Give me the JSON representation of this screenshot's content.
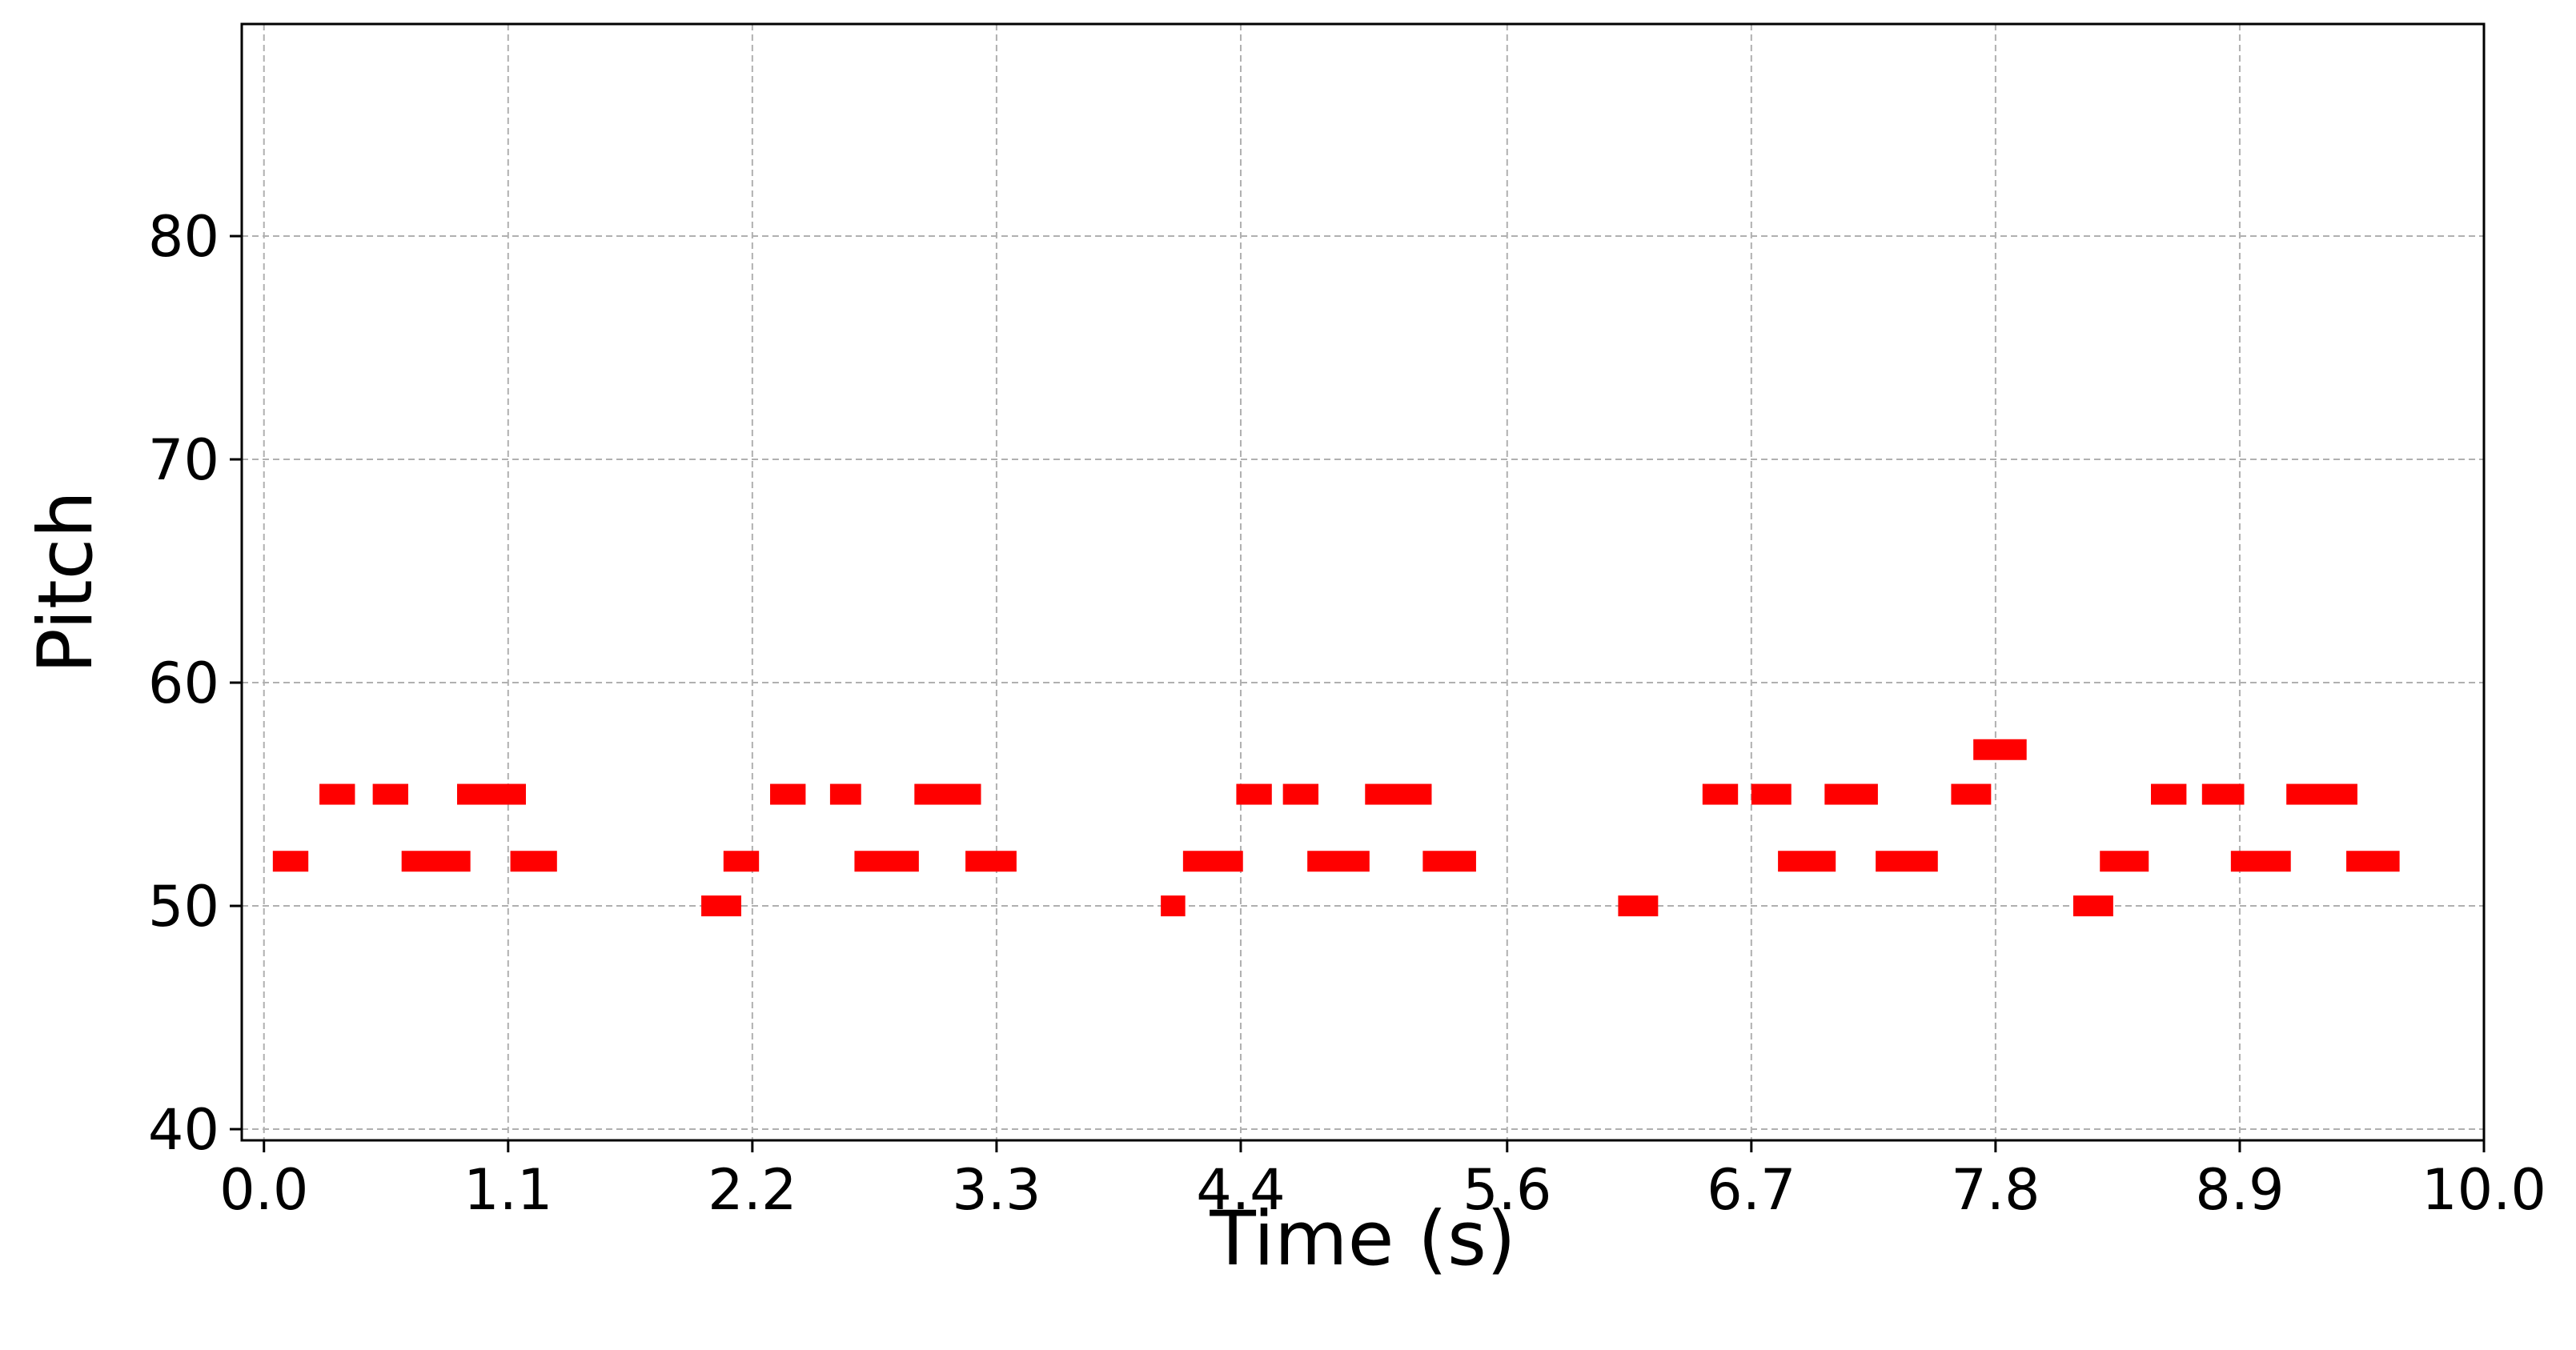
{
  "chart_data": {
    "type": "scatter",
    "title": "",
    "xlabel": "Time (s)",
    "ylabel": "Pitch",
    "xlim": [
      -0.1,
      10.0
    ],
    "ylim": [
      39.5,
      89.5
    ],
    "x_ticks": [
      "0.0",
      "1.1",
      "2.2",
      "3.3",
      "4.4",
      "5.6",
      "6.7",
      "7.8",
      "8.9",
      "10.0"
    ],
    "x_tick_values": [
      0.0,
      1.1,
      2.2,
      3.3,
      4.4,
      5.6,
      6.7,
      7.8,
      8.9,
      10.0
    ],
    "y_ticks": [
      "40",
      "50",
      "60",
      "70",
      "80"
    ],
    "y_tick_values": [
      40,
      50,
      60,
      70,
      80
    ],
    "grid": true,
    "note_color": "#ff0000",
    "series": [
      {
        "values": [
          {
            "start": 0.04,
            "end": 0.2,
            "pitch": 52
          },
          {
            "start": 0.25,
            "end": 0.41,
            "pitch": 55
          },
          {
            "start": 0.49,
            "end": 0.65,
            "pitch": 55
          },
          {
            "start": 0.62,
            "end": 0.93,
            "pitch": 52
          },
          {
            "start": 0.87,
            "end": 1.18,
            "pitch": 55
          },
          {
            "start": 1.11,
            "end": 1.32,
            "pitch": 52
          },
          {
            "start": 1.97,
            "end": 2.15,
            "pitch": 50
          },
          {
            "start": 2.07,
            "end": 2.23,
            "pitch": 52
          },
          {
            "start": 2.28,
            "end": 2.44,
            "pitch": 55
          },
          {
            "start": 2.55,
            "end": 2.69,
            "pitch": 55
          },
          {
            "start": 2.66,
            "end": 2.95,
            "pitch": 52
          },
          {
            "start": 2.93,
            "end": 3.23,
            "pitch": 55
          },
          {
            "start": 3.16,
            "end": 3.39,
            "pitch": 52
          },
          {
            "start": 4.04,
            "end": 4.15,
            "pitch": 50
          },
          {
            "start": 4.14,
            "end": 4.41,
            "pitch": 52
          },
          {
            "start": 4.38,
            "end": 4.54,
            "pitch": 55
          },
          {
            "start": 4.59,
            "end": 4.75,
            "pitch": 55
          },
          {
            "start": 4.7,
            "end": 4.98,
            "pitch": 52
          },
          {
            "start": 4.96,
            "end": 5.26,
            "pitch": 55
          },
          {
            "start": 5.22,
            "end": 5.46,
            "pitch": 52
          },
          {
            "start": 6.1,
            "end": 6.28,
            "pitch": 50
          },
          {
            "start": 6.48,
            "end": 6.64,
            "pitch": 55
          },
          {
            "start": 6.7,
            "end": 6.88,
            "pitch": 55
          },
          {
            "start": 6.82,
            "end": 7.08,
            "pitch": 52
          },
          {
            "start": 7.03,
            "end": 7.27,
            "pitch": 55
          },
          {
            "start": 7.26,
            "end": 7.54,
            "pitch": 52
          },
          {
            "start": 7.6,
            "end": 7.78,
            "pitch": 55
          },
          {
            "start": 7.7,
            "end": 7.94,
            "pitch": 57
          },
          {
            "start": 8.15,
            "end": 8.33,
            "pitch": 50
          },
          {
            "start": 8.27,
            "end": 8.49,
            "pitch": 52
          },
          {
            "start": 8.5,
            "end": 8.66,
            "pitch": 55
          },
          {
            "start": 8.73,
            "end": 8.92,
            "pitch": 55
          },
          {
            "start": 8.86,
            "end": 9.13,
            "pitch": 52
          },
          {
            "start": 9.11,
            "end": 9.43,
            "pitch": 55
          },
          {
            "start": 9.38,
            "end": 9.62,
            "pitch": 52
          }
        ]
      }
    ]
  }
}
